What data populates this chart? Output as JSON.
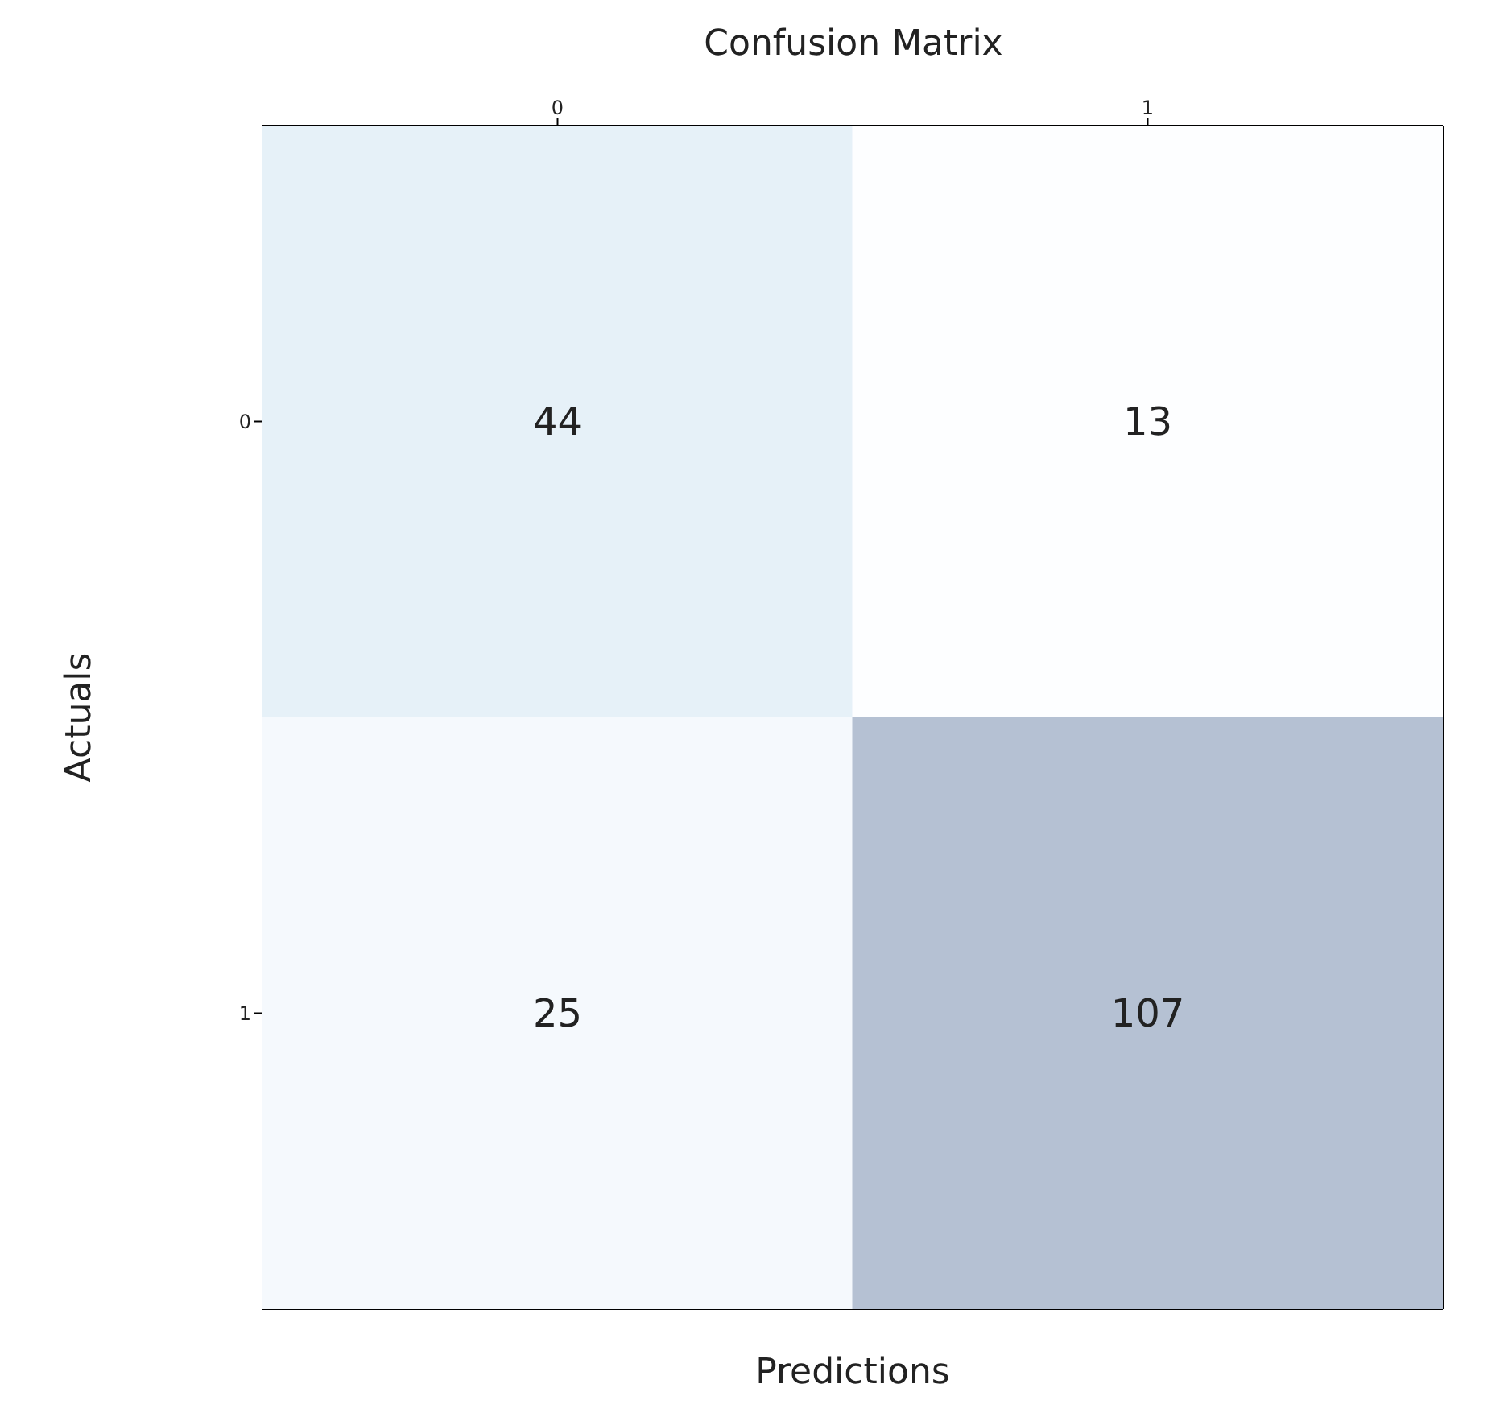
{
  "chart_data": {
    "type": "heatmap",
    "title": "Confusion Matrix",
    "xlabel": "Predictions",
    "ylabel": "Actuals",
    "categories": [
      "0",
      "1"
    ],
    "y_categories": [
      "0",
      "1"
    ],
    "cells": [
      [
        44,
        13
      ],
      [
        25,
        107
      ]
    ],
    "data_labels": true
  }
}
